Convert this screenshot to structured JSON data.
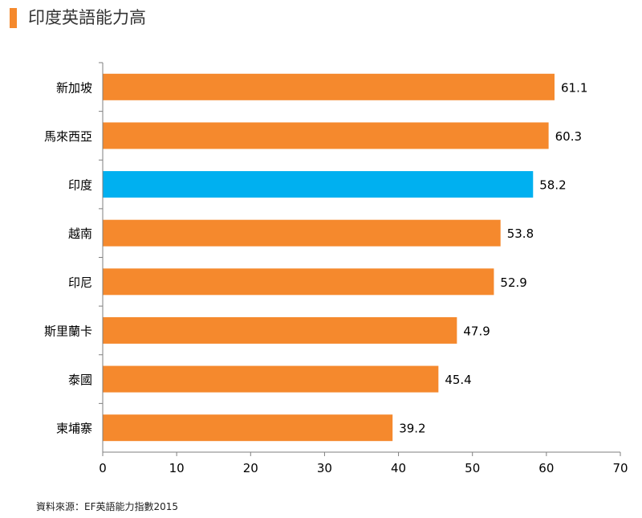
{
  "header": {
    "title": "印度英語能力高",
    "accent_color": "#f5892d"
  },
  "footer": {
    "source": "資料來源：EF英語能力指數2015"
  },
  "chart_data": {
    "type": "bar",
    "orientation": "horizontal",
    "categories": [
      "新加坡",
      "馬來西亞",
      "印度",
      "越南",
      "印尼",
      "斯里蘭卡",
      "泰國",
      "柬埔寨"
    ],
    "values": [
      61.1,
      60.3,
      58.2,
      53.8,
      52.9,
      47.9,
      45.4,
      39.2
    ],
    "value_labels": [
      "61.1",
      "60.3",
      "58.2",
      "53.8",
      "52.9",
      "47.9",
      "45.4",
      "39.2"
    ],
    "highlight": "印度",
    "colors": {
      "default": "#f5892d",
      "highlight": "#00b0f0",
      "axis": "#7f7f7f"
    },
    "xlim": [
      0,
      70
    ],
    "xticks": [
      "0",
      "10",
      "20",
      "30",
      "40",
      "50",
      "60",
      "70"
    ],
    "grid": false,
    "legend": "none"
  }
}
